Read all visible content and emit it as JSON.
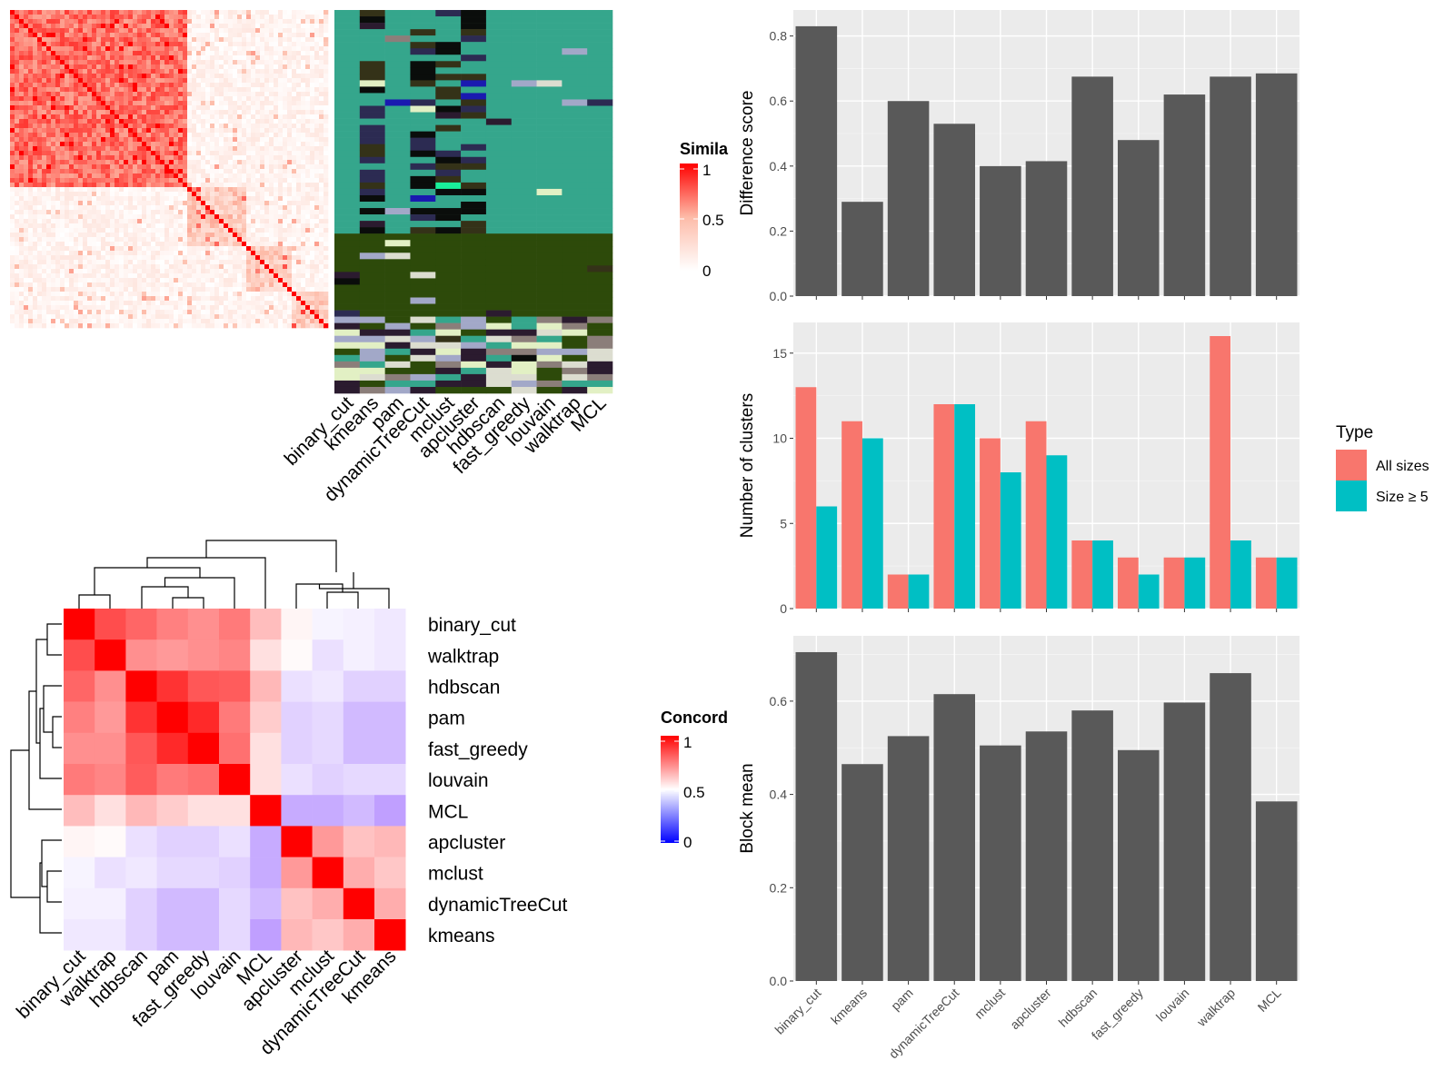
{
  "methods": [
    "binary_cut",
    "kmeans",
    "pam",
    "dynamicTreeCut",
    "mclust",
    "apcluster",
    "hdbscan",
    "fast_greedy",
    "louvain",
    "walktrap",
    "MCL"
  ],
  "similarity_legend": {
    "title": "Simila",
    "ticks": [
      "1",
      "0.5",
      "0"
    ]
  },
  "concordance_legend": {
    "title": "Concord",
    "ticks": [
      "1",
      "0.5",
      "0"
    ]
  },
  "concordance": {
    "order": [
      "binary_cut",
      "walktrap",
      "hdbscan",
      "pam",
      "fast_greedy",
      "louvain",
      "MCL",
      "apcluster",
      "mclust",
      "dynamicTreeCut",
      "kmeans"
    ],
    "matrix": [
      [
        1.0,
        0.85,
        0.8,
        0.75,
        0.72,
        0.76,
        0.63,
        0.52,
        0.47,
        0.46,
        0.44
      ],
      [
        0.85,
        1.0,
        0.72,
        0.7,
        0.72,
        0.74,
        0.56,
        0.51,
        0.42,
        0.46,
        0.44
      ],
      [
        0.8,
        0.72,
        1.0,
        0.9,
        0.83,
        0.82,
        0.64,
        0.42,
        0.44,
        0.38,
        0.38
      ],
      [
        0.75,
        0.7,
        0.9,
        1.0,
        0.92,
        0.76,
        0.6,
        0.38,
        0.4,
        0.32,
        0.32
      ],
      [
        0.72,
        0.72,
        0.83,
        0.92,
        1.0,
        0.78,
        0.56,
        0.38,
        0.4,
        0.32,
        0.32
      ],
      [
        0.76,
        0.74,
        0.82,
        0.76,
        0.78,
        1.0,
        0.56,
        0.42,
        0.38,
        0.4,
        0.4
      ],
      [
        0.63,
        0.56,
        0.64,
        0.6,
        0.56,
        0.56,
        1.0,
        0.28,
        0.28,
        0.32,
        0.25
      ],
      [
        0.52,
        0.51,
        0.42,
        0.38,
        0.38,
        0.42,
        0.28,
        1.0,
        0.7,
        0.62,
        0.64
      ],
      [
        0.47,
        0.42,
        0.44,
        0.4,
        0.4,
        0.38,
        0.28,
        0.7,
        1.0,
        0.66,
        0.61
      ],
      [
        0.46,
        0.46,
        0.38,
        0.32,
        0.32,
        0.4,
        0.32,
        0.62,
        0.66,
        1.0,
        0.66
      ],
      [
        0.44,
        0.44,
        0.38,
        0.32,
        0.32,
        0.4,
        0.25,
        0.64,
        0.61,
        0.66,
        1.0
      ]
    ]
  },
  "membership_colors": [
    "#35A68C",
    "#2D4A0A",
    "#2C2B52",
    "#343218",
    "#0A0D0B",
    "#A2A8C8",
    "#DCDDD0",
    "#8B7E7A",
    "#E2F0C4",
    "#19F09A",
    "#2B1B2F",
    "#1A1AB0"
  ],
  "chart_data": [
    {
      "type": "heatmap",
      "title": "",
      "legend_title": "Simila",
      "color_scale": {
        "min": 0,
        "mid": 0.5,
        "max": 1,
        "low": "#ffffff",
        "mid_color": "#fdbba8",
        "high": "#ff0000"
      },
      "legend_ticks": [
        1,
        0.5,
        0
      ],
      "column_labels": [
        "binary_cut",
        "kmeans",
        "pam",
        "dynamicTreeCut",
        "mclust",
        "apcluster",
        "hdbscan",
        "fast_greedy",
        "louvain",
        "walktrap",
        "MCL"
      ]
    },
    {
      "type": "heatmap",
      "title": "",
      "legend_title": "Concord",
      "color_scale": {
        "min": 0,
        "mid": 0.5,
        "max": 1,
        "low": "#0000ff",
        "mid_color": "#ffffff",
        "high": "#ff0000"
      },
      "legend_ticks": [
        1,
        0.5,
        0
      ],
      "rows": [
        "binary_cut",
        "walktrap",
        "hdbscan",
        "pam",
        "fast_greedy",
        "louvain",
        "MCL",
        "apcluster",
        "mclust",
        "dynamicTreeCut",
        "kmeans"
      ],
      "columns": [
        "binary_cut",
        "walktrap",
        "hdbscan",
        "pam",
        "fast_greedy",
        "louvain",
        "MCL",
        "apcluster",
        "mclust",
        "dynamicTreeCut",
        "kmeans"
      ]
    },
    {
      "type": "bar",
      "categories": [
        "binary_cut",
        "kmeans",
        "pam",
        "dynamicTreeCut",
        "mclust",
        "apcluster",
        "hdbscan",
        "fast_greedy",
        "louvain",
        "walktrap",
        "MCL"
      ],
      "values": [
        0.83,
        0.29,
        0.6,
        0.53,
        0.4,
        0.415,
        0.675,
        0.48,
        0.62,
        0.675,
        0.685
      ],
      "xlabel": "",
      "ylabel": "Difference score",
      "ylim": [
        0,
        0.88
      ],
      "yticks": [
        0.0,
        0.2,
        0.4,
        0.6,
        0.8
      ],
      "ytick_labels": [
        "0.0",
        "0.2",
        "0.4",
        "0.6",
        "0.8"
      ],
      "grid": true,
      "bar_color": "#595959",
      "panel_color": "#EBEBEB"
    },
    {
      "type": "bar",
      "categories": [
        "binary_cut",
        "kmeans",
        "pam",
        "dynamicTreeCut",
        "mclust",
        "apcluster",
        "hdbscan",
        "fast_greedy",
        "louvain",
        "walktrap",
        "MCL"
      ],
      "series": [
        {
          "name": "All sizes",
          "values": [
            13,
            11,
            2,
            12,
            10,
            11,
            4,
            3,
            3,
            16,
            3
          ],
          "color": "#F8766D"
        },
        {
          "name": "Size ≥ 5",
          "values": [
            6,
            10,
            2,
            12,
            8,
            9,
            4,
            2,
            3,
            4,
            3
          ],
          "color": "#00BFC4"
        }
      ],
      "xlabel": "",
      "ylabel": "Number of clusters",
      "ylim": [
        0,
        16.8
      ],
      "yticks": [
        0,
        5,
        10,
        15
      ],
      "ytick_labels": [
        "0",
        "5",
        "10",
        "15"
      ],
      "legend_title": "Type",
      "legend_position": "right",
      "grid": true,
      "panel_color": "#EBEBEB"
    },
    {
      "type": "bar",
      "categories": [
        "binary_cut",
        "kmeans",
        "pam",
        "dynamicTreeCut",
        "mclust",
        "apcluster",
        "hdbscan",
        "fast_greedy",
        "louvain",
        "walktrap",
        "MCL"
      ],
      "values": [
        0.705,
        0.465,
        0.525,
        0.615,
        0.505,
        0.535,
        0.58,
        0.495,
        0.597,
        0.66,
        0.385
      ],
      "xlabel": "",
      "ylabel": "Block mean",
      "ylim": [
        0,
        0.74
      ],
      "yticks": [
        0.0,
        0.2,
        0.4,
        0.6
      ],
      "ytick_labels": [
        "0.0",
        "0.2",
        "0.4",
        "0.6"
      ],
      "grid": true,
      "bar_color": "#595959",
      "panel_color": "#EBEBEB"
    }
  ]
}
